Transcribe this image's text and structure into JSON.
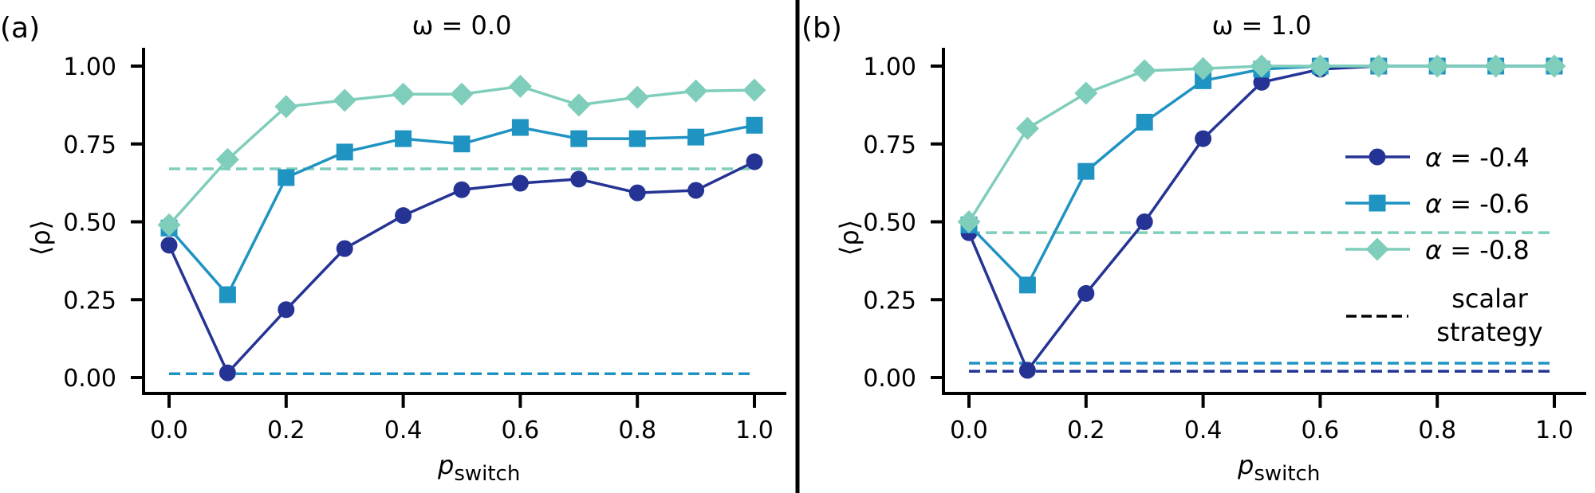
{
  "chart_data": [
    {
      "type": "line",
      "panel_label": "(a)",
      "title": "ω = 0.0",
      "xlabel": "p",
      "xlabel_sub": "switch",
      "ylabel": "⟨ρ⟩",
      "xlim": [
        0.0,
        1.0
      ],
      "ylim": [
        0.0,
        1.0
      ],
      "xticks": [
        0.0,
        0.2,
        0.4,
        0.6,
        0.8,
        1.0
      ],
      "xtick_labels": [
        "0.0",
        "0.2",
        "0.4",
        "0.6",
        "0.8",
        "1.0"
      ],
      "yticks": [
        0.0,
        0.25,
        0.5,
        0.75,
        1.0
      ],
      "ytick_labels": [
        "0.00",
        "0.25",
        "0.50",
        "0.75",
        "1.00"
      ],
      "grid": false,
      "x": [
        0.0,
        0.1,
        0.2,
        0.3,
        0.4,
        0.5,
        0.6,
        0.7,
        0.8,
        0.9,
        1.0
      ],
      "series": [
        {
          "name": "α = -0.4",
          "marker": "circle",
          "color": "#253494",
          "values": [
            0.425,
            0.015,
            0.218,
            0.414,
            0.52,
            0.603,
            0.624,
            0.637,
            0.593,
            0.601,
            0.693
          ],
          "scalar_strategy": 0.012
        },
        {
          "name": "α = -0.6",
          "marker": "square",
          "color": "#1f93c2",
          "values": [
            0.48,
            0.266,
            0.642,
            0.724,
            0.767,
            0.75,
            0.803,
            0.767,
            0.767,
            0.772,
            0.81
          ],
          "scalar_strategy": 0.012
        },
        {
          "name": "α = -0.8",
          "marker": "diamond",
          "color": "#7fcdbb",
          "values": [
            0.49,
            0.7,
            0.87,
            0.89,
            0.91,
            0.91,
            0.935,
            0.875,
            0.9,
            0.92,
            0.923
          ],
          "scalar_strategy": 0.67
        }
      ],
      "legend": null
    },
    {
      "type": "line",
      "panel_label": "(b)",
      "title": "ω = 1.0",
      "xlabel": "p",
      "xlabel_sub": "switch",
      "ylabel": "⟨ρ⟩",
      "xlim": [
        0.0,
        1.0
      ],
      "ylim": [
        0.0,
        1.0
      ],
      "xticks": [
        0.0,
        0.2,
        0.4,
        0.6,
        0.8,
        1.0
      ],
      "xtick_labels": [
        "0.0",
        "0.2",
        "0.4",
        "0.6",
        "0.8",
        "1.0"
      ],
      "yticks": [
        0.0,
        0.25,
        0.5,
        0.75,
        1.0
      ],
      "ytick_labels": [
        "0.00",
        "0.25",
        "0.50",
        "0.75",
        "1.00"
      ],
      "grid": false,
      "x": [
        0.0,
        0.1,
        0.2,
        0.3,
        0.4,
        0.5,
        0.6,
        0.7,
        0.8,
        0.9,
        1.0
      ],
      "series": [
        {
          "name": "α = -0.4",
          "marker": "circle",
          "color": "#253494",
          "values": [
            0.465,
            0.023,
            0.27,
            0.5,
            0.767,
            0.948,
            0.99,
            1.0,
            1.0,
            1.0,
            1.0
          ],
          "scalar_strategy": 0.02
        },
        {
          "name": "α = -0.6",
          "marker": "square",
          "color": "#1f93c2",
          "values": [
            0.49,
            0.297,
            0.662,
            0.82,
            0.953,
            0.99,
            1.0,
            1.0,
            1.0,
            1.0,
            1.0
          ],
          "scalar_strategy": 0.046
        },
        {
          "name": "α = -0.8",
          "marker": "diamond",
          "color": "#7fcdbb",
          "values": [
            0.5,
            0.8,
            0.913,
            0.985,
            0.992,
            1.0,
            1.0,
            1.0,
            1.0,
            1.0,
            1.0
          ],
          "scalar_strategy": 0.465
        }
      ],
      "legend": {
        "placement": "center-right",
        "entries": [
          {
            "label": "α = -0.4",
            "marker": "circle",
            "color": "#253494",
            "style": "solid"
          },
          {
            "label": "α = -0.6",
            "marker": "square",
            "color": "#1f93c2",
            "style": "solid"
          },
          {
            "label": "α = -0.8",
            "marker": "diamond",
            "color": "#7fcdbb",
            "style": "solid"
          },
          {
            "label_lines": [
              "scalar",
              "strategy"
            ],
            "marker": "none",
            "color": "#000000",
            "style": "dashed"
          }
        ]
      }
    }
  ]
}
